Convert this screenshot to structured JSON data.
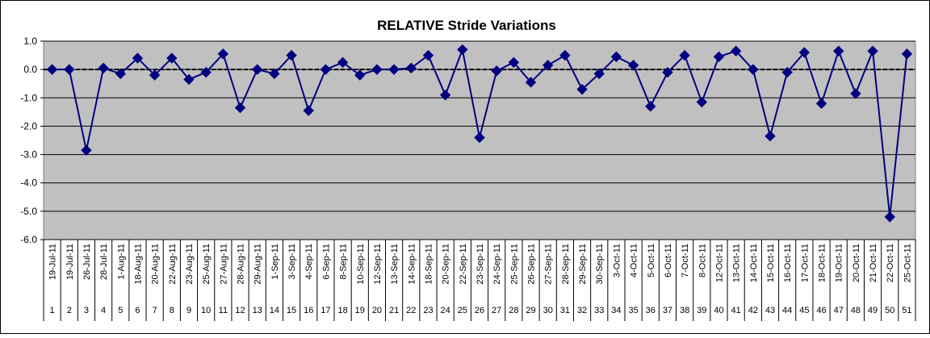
{
  "chart_data": {
    "type": "line",
    "title": "RELATIVE Stride Variations",
    "xlabel": "",
    "ylabel": "",
    "ylim": [
      -6.0,
      1.0
    ],
    "yticks": [
      "1.0",
      "0.0",
      "-1.0",
      "-2.0",
      "-3.0",
      "-4.0",
      "-5.0",
      "-6.0"
    ],
    "grid": true,
    "legend": "none",
    "categories": [
      {
        "date": "19-Jul-11",
        "num": "1"
      },
      {
        "date": "19-Jul-11",
        "num": "2"
      },
      {
        "date": "26-Jul-11",
        "num": "3"
      },
      {
        "date": "28-Jul-11",
        "num": "4"
      },
      {
        "date": "1-Aug-11",
        "num": "5"
      },
      {
        "date": "18-Aug-11",
        "num": "6"
      },
      {
        "date": "20-Aug-11",
        "num": "7"
      },
      {
        "date": "22-Aug-11",
        "num": "8"
      },
      {
        "date": "23-Aug-11",
        "num": "9"
      },
      {
        "date": "25-Aug-11",
        "num": "10"
      },
      {
        "date": "27-Aug-11",
        "num": "11"
      },
      {
        "date": "28-Aug-11",
        "num": "12"
      },
      {
        "date": "29-Aug-11",
        "num": "13"
      },
      {
        "date": "1-Sep-11",
        "num": "14"
      },
      {
        "date": "3-Sep-11",
        "num": "15"
      },
      {
        "date": "4-Sep-11",
        "num": "16"
      },
      {
        "date": "6-Sep-11",
        "num": "17"
      },
      {
        "date": "8-Sep-11",
        "num": "18"
      },
      {
        "date": "10-Sep-11",
        "num": "19"
      },
      {
        "date": "12-Sep-11",
        "num": "20"
      },
      {
        "date": "13-Sep-11",
        "num": "21"
      },
      {
        "date": "14-Sep-11",
        "num": "22"
      },
      {
        "date": "18-Sep-11",
        "num": "23"
      },
      {
        "date": "20-Sep-11",
        "num": "24"
      },
      {
        "date": "22-Sep-11",
        "num": "25"
      },
      {
        "date": "23-Sep-11",
        "num": "26"
      },
      {
        "date": "24-Sep-11",
        "num": "27"
      },
      {
        "date": "25-Sep-11",
        "num": "28"
      },
      {
        "date": "26-Sep-11",
        "num": "29"
      },
      {
        "date": "27-Sep-11",
        "num": "30"
      },
      {
        "date": "28-Sep-11",
        "num": "31"
      },
      {
        "date": "29-Sep-11",
        "num": "32"
      },
      {
        "date": "30-Sep-11",
        "num": "33"
      },
      {
        "date": "3-Oct-11",
        "num": "34"
      },
      {
        "date": "4-Oct-11",
        "num": "35"
      },
      {
        "date": "5-Oct-11",
        "num": "36"
      },
      {
        "date": "6-Oct-11",
        "num": "37"
      },
      {
        "date": "7-Oct-11",
        "num": "38"
      },
      {
        "date": "8-Oct-11",
        "num": "39"
      },
      {
        "date": "12-Oct-11",
        "num": "40"
      },
      {
        "date": "13-Oct-11",
        "num": "41"
      },
      {
        "date": "14-Oct-11",
        "num": "42"
      },
      {
        "date": "15-Oct-11",
        "num": "43"
      },
      {
        "date": "16-Oct-11",
        "num": "44"
      },
      {
        "date": "17-Oct-11",
        "num": "45"
      },
      {
        "date": "18-Oct-11",
        "num": "46"
      },
      {
        "date": "19-Oct-11",
        "num": "47"
      },
      {
        "date": "20-Oct-11",
        "num": "48"
      },
      {
        "date": "21-Oct-11",
        "num": "49"
      },
      {
        "date": "22-Oct-11",
        "num": "50"
      },
      {
        "date": "25-Oct-11",
        "num": "51"
      }
    ],
    "series": [
      {
        "values": [
          0.0,
          0.0,
          -2.85,
          0.05,
          -0.15,
          0.4,
          -0.2,
          0.4,
          -0.35,
          -0.1,
          0.55,
          -1.35,
          0.0,
          -0.15,
          0.5,
          -1.45,
          0.0,
          0.25,
          -0.2,
          0.0,
          0.0,
          0.05,
          0.5,
          -0.9,
          0.7,
          -2.4,
          -0.05,
          0.25,
          -0.45,
          0.15,
          0.5,
          -0.7,
          -0.15,
          0.45,
          0.15,
          -1.3,
          -0.1,
          0.5,
          -1.15,
          0.45,
          0.65,
          0.0,
          -2.35,
          -0.1,
          0.6,
          -1.2,
          0.65,
          -0.85,
          0.65,
          -5.2,
          0.55
        ],
        "color": "#000080"
      }
    ],
    "colors": {
      "plot_background": "#c0c0c0",
      "line": "#000080",
      "gridline": "#000000"
    }
  }
}
